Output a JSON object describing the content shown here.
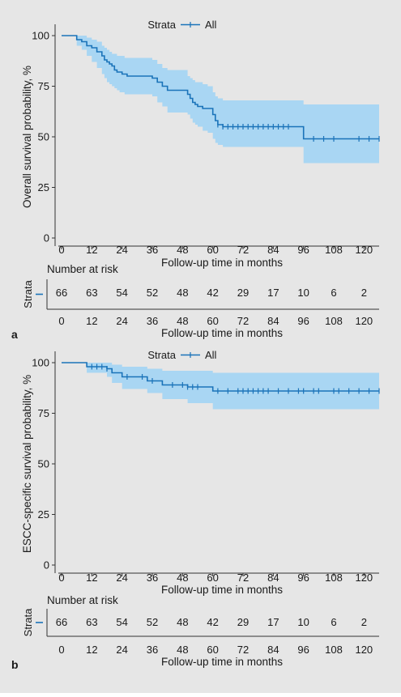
{
  "figure": {
    "background": "#e6e6e6",
    "line_color": "#1a73b9",
    "band_color": "#a9d6f3",
    "axis_color": "#333333"
  },
  "chart_data": [
    {
      "type": "line",
      "panel": "a",
      "legend": {
        "title": "Strata",
        "entries": [
          "All"
        ],
        "placement": "top-center"
      },
      "xlabel": "Follow-up time in months",
      "ylabel": "Overall survival probability, %",
      "xlim": [
        0,
        126
      ],
      "ylim": [
        0,
        100
      ],
      "xticks": [
        0,
        12,
        24,
        36,
        48,
        60,
        72,
        84,
        96,
        108,
        120
      ],
      "yticks": [
        0,
        25,
        50,
        75,
        100
      ],
      "series": [
        {
          "name": "All",
          "step": true,
          "x": [
            0,
            6,
            8,
            10,
            12,
            14,
            16,
            17,
            18,
            19,
            20,
            21,
            22,
            23,
            24,
            25,
            26,
            36,
            38,
            40,
            42,
            50,
            51,
            52,
            53,
            54,
            56,
            58,
            60,
            61,
            62,
            64,
            72,
            84,
            96,
            126
          ],
          "y": [
            100,
            98,
            97,
            95,
            94,
            92,
            90,
            88,
            87,
            86,
            85,
            83,
            82,
            82,
            81,
            81,
            80,
            79,
            77,
            75,
            73,
            71,
            69,
            67,
            66,
            65,
            64,
            64,
            61,
            58,
            56,
            55,
            55,
            55,
            49,
            49
          ],
          "ci_lower": [
            100,
            95,
            93,
            90,
            87,
            84,
            81,
            79,
            77,
            76,
            75,
            74,
            73,
            72,
            72,
            71,
            71,
            70,
            67,
            65,
            62,
            61,
            59,
            57,
            56,
            55,
            53,
            52,
            49,
            47,
            46,
            45,
            45,
            45,
            37,
            37
          ],
          "ci_upper": [
            100,
            100,
            100,
            99,
            98,
            97,
            95,
            94,
            93,
            92,
            91,
            91,
            90,
            90,
            90,
            89,
            89,
            88,
            86,
            84,
            83,
            80,
            79,
            78,
            77,
            77,
            76,
            75,
            72,
            70,
            69,
            68,
            68,
            68,
            66,
            66
          ],
          "censor_x": [
            62,
            64,
            66,
            68,
            70,
            72,
            74,
            76,
            78,
            80,
            82,
            84,
            86,
            88,
            90,
            100,
            104,
            108,
            118,
            122,
            126
          ]
        }
      ],
      "risk_table": {
        "title": "Number at risk",
        "strata_label": "Strata",
        "times": [
          0,
          12,
          24,
          36,
          48,
          60,
          72,
          84,
          96,
          108,
          120
        ],
        "counts": [
          "66",
          "63",
          "54",
          "52",
          "48",
          "42",
          "29",
          "17",
          "10",
          "6",
          "2"
        ],
        "xlabel": "Follow-up time in months"
      }
    },
    {
      "type": "line",
      "panel": "b",
      "legend": {
        "title": "Strata",
        "entries": [
          "All"
        ],
        "placement": "top-center"
      },
      "xlabel": "Follow-up time in months",
      "ylabel": "ESCC-specific survival probability, %",
      "xlim": [
        0,
        126
      ],
      "ylim": [
        0,
        100
      ],
      "xticks": [
        0,
        12,
        24,
        36,
        48,
        60,
        72,
        84,
        96,
        108,
        120
      ],
      "yticks": [
        0,
        25,
        50,
        75,
        100
      ],
      "series": [
        {
          "name": "All",
          "step": true,
          "x": [
            0,
            10,
            18,
            20,
            24,
            34,
            40,
            50,
            60,
            126
          ],
          "y": [
            100,
            98,
            97,
            95,
            93,
            91,
            89,
            88,
            86,
            86
          ],
          "ci_lower": [
            100,
            95,
            93,
            90,
            87,
            85,
            82,
            80,
            77,
            77
          ],
          "ci_upper": [
            100,
            100,
            100,
            99,
            98,
            97,
            96,
            96,
            95,
            95
          ],
          "censor_x": [
            12,
            14,
            16,
            18,
            26,
            32,
            36,
            44,
            48,
            50,
            52,
            54,
            62,
            66,
            70,
            72,
            74,
            76,
            78,
            80,
            82,
            86,
            90,
            94,
            96,
            100,
            102,
            108,
            110,
            114,
            118,
            122,
            126
          ]
        }
      ],
      "risk_table": {
        "title": "Number at risk",
        "strata_label": "Strata",
        "times": [
          0,
          12,
          24,
          36,
          48,
          60,
          72,
          84,
          96,
          108,
          120
        ],
        "counts": [
          "66",
          "63",
          "54",
          "52",
          "48",
          "42",
          "29",
          "17",
          "10",
          "6",
          "2"
        ],
        "xlabel": "Follow-up time in months"
      }
    }
  ]
}
